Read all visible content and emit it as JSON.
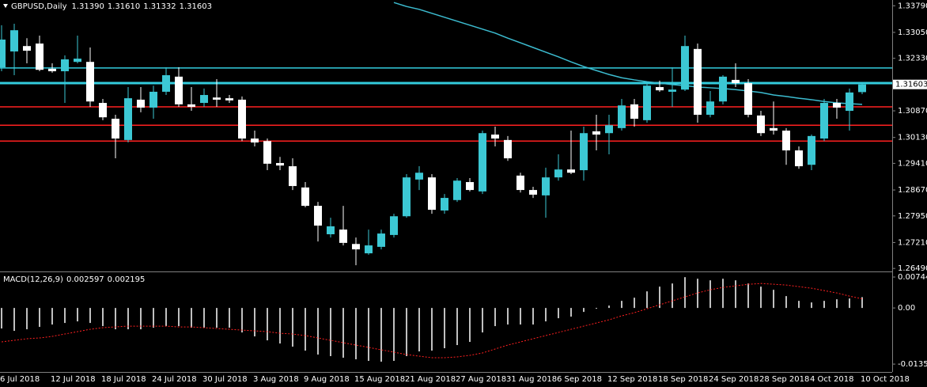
{
  "chart_data": [
    {
      "type": "candlestick",
      "title": "GBPUSD,Daily",
      "header_labels": [
        "1.31390",
        "1.31610",
        "1.31332",
        "1.31603"
      ],
      "categories": [
        "6 Jul 2018",
        null,
        null,
        null,
        "12 Jul 2018",
        null,
        null,
        null,
        "18 Jul 2018",
        null,
        null,
        null,
        "24 Jul 2018",
        null,
        null,
        null,
        "30 Jul 2018",
        null,
        null,
        null,
        "3 Aug 2018",
        null,
        null,
        null,
        "9 Aug 2018",
        null,
        null,
        null,
        "15 Aug 2018",
        null,
        null,
        null,
        "21 Aug 2018",
        null,
        null,
        null,
        "27 Aug 2018",
        null,
        null,
        null,
        "31 Aug 2018",
        null,
        null,
        null,
        "6 Sep 2018",
        null,
        null,
        null,
        "12 Sep 2018",
        null,
        null,
        null,
        "18 Sep 2018",
        null,
        null,
        null,
        "24 Sep 2018",
        null,
        null,
        null,
        "28 Sep 2018",
        null,
        null,
        null,
        "4 Oct 2018",
        null,
        null,
        null,
        "10 Oct 2018"
      ],
      "open": [
        1.3208,
        1.3252,
        1.3267,
        1.3274,
        1.3204,
        1.3197,
        1.3223,
        1.3223,
        1.3109,
        1.3065,
        1.3006,
        1.3118,
        1.3096,
        1.314,
        1.3182,
        1.3105,
        1.3109,
        1.3124,
        1.3122,
        1.3118,
        1.301,
        1.3003,
        1.2942,
        1.2933,
        1.2874,
        1.2823,
        1.2744,
        1.2757,
        1.2717,
        1.2691,
        1.2709,
        1.2742,
        1.2794,
        1.2896,
        1.2902,
        1.281,
        1.2839,
        1.2889,
        1.2863,
        1.3021,
        1.3006,
        1.2907,
        1.2867,
        1.2852,
        1.2902,
        1.2924,
        1.2922,
        1.303,
        1.3025,
        1.3039,
        1.3105,
        1.3061,
        1.3153,
        1.314,
        1.3146,
        1.3259,
        1.3076,
        1.3113,
        1.3173,
        1.3164,
        1.3074,
        1.3039,
        1.3032,
        1.2977,
        1.2937,
        1.301,
        1.3109,
        1.3087,
        1.3139
      ],
      "high": [
        1.3325,
        1.3329,
        1.3289,
        1.3296,
        1.3219,
        1.3241,
        1.3296,
        1.3263,
        1.312,
        1.3076,
        1.3153,
        1.3153,
        1.3157,
        1.3208,
        1.3208,
        1.3153,
        1.3149,
        1.3175,
        1.3131,
        1.3127,
        1.3032,
        1.301,
        1.2959,
        1.2955,
        1.2889,
        1.2834,
        1.279,
        1.2823,
        1.2735,
        1.2757,
        1.2757,
        1.2801,
        1.2911,
        1.2933,
        1.2911,
        1.2856,
        1.29,
        1.29,
        1.3032,
        1.3043,
        1.3017,
        1.2915,
        1.2876,
        1.2929,
        1.2966,
        1.3032,
        1.3043,
        1.3076,
        1.3076,
        1.312,
        1.312,
        1.3164,
        1.3171,
        1.3208,
        1.3296,
        1.3274,
        1.3142,
        1.3186,
        1.3219,
        1.3175,
        1.3087,
        1.3113,
        1.3039,
        1.2988,
        1.3021,
        1.312,
        1.312,
        1.3149,
        1.3161
      ],
      "low": [
        1.3197,
        1.3186,
        1.3219,
        1.3197,
        1.3193,
        1.3109,
        1.3219,
        1.3098,
        1.3061,
        1.2955,
        1.2999,
        1.3083,
        1.3065,
        1.3131,
        1.3098,
        1.3087,
        1.3098,
        1.3098,
        1.3109,
        1.3003,
        1.2988,
        1.2922,
        1.2922,
        1.2867,
        1.2819,
        1.2724,
        1.2735,
        1.2713,
        1.2658,
        1.2687,
        1.2702,
        1.2735,
        1.279,
        1.2867,
        1.2801,
        1.2801,
        1.2834,
        1.2863,
        1.2856,
        1.2988,
        1.2948,
        1.286,
        1.2845,
        1.279,
        1.2893,
        1.2911,
        1.2893,
        1.2977,
        1.2966,
        1.3032,
        1.3043,
        1.3054,
        1.314,
        1.3098,
        1.3142,
        1.3054,
        1.3069,
        1.3105,
        1.3153,
        1.3069,
        1.3017,
        1.3021,
        1.2937,
        1.2926,
        1.2922,
        1.3003,
        1.3065,
        1.3032,
        1.31332
      ],
      "close": [
        1.3285,
        1.3311,
        1.3254,
        1.3201,
        1.3197,
        1.323,
        1.3232,
        1.3113,
        1.3069,
        1.301,
        1.3122,
        1.3096,
        1.314,
        1.3186,
        1.3105,
        1.3098,
        1.3131,
        1.3118,
        1.3116,
        1.301,
        1.2999,
        1.294,
        1.2935,
        1.2878,
        1.2823,
        1.2768,
        1.2766,
        1.272,
        1.2702,
        1.2713,
        1.2746,
        1.2794,
        1.2902,
        1.2915,
        1.2812,
        1.2845,
        1.2893,
        1.2867,
        1.3025,
        1.301,
        1.2955,
        1.2867,
        1.2854,
        1.2902,
        1.2924,
        1.2915,
        1.3025,
        1.3021,
        1.3047,
        1.3102,
        1.3065,
        1.3157,
        1.3144,
        1.3146,
        1.3267,
        1.3076,
        1.3113,
        1.3182,
        1.3164,
        1.3076,
        1.3025,
        1.3032,
        1.2977,
        1.2933,
        1.3017,
        1.3109,
        1.3096,
        1.3138,
        1.31603
      ],
      "up_color": "#3cc8d4",
      "down_color": "#ffffff",
      "ma": {
        "color": "#3cbcd0",
        "values": [
          null,
          null,
          null,
          null,
          null,
          null,
          null,
          null,
          null,
          null,
          null,
          null,
          null,
          null,
          null,
          null,
          null,
          null,
          null,
          null,
          null,
          null,
          null,
          null,
          null,
          null,
          null,
          null,
          null,
          null,
          null,
          1.3388,
          1.3377,
          1.3369,
          1.3358,
          1.3347,
          1.3336,
          1.3325,
          1.3314,
          1.3303,
          1.3289,
          1.3276,
          1.3263,
          1.325,
          1.3237,
          1.3223,
          1.321,
          1.3199,
          1.3188,
          1.3179,
          1.3173,
          1.3168,
          1.3164,
          1.316,
          1.3157,
          1.3153,
          1.3151,
          1.3149,
          1.3146,
          1.3142,
          1.3138,
          1.3131,
          1.3127,
          1.3122,
          1.3118,
          1.3113,
          1.3109,
          1.3107,
          1.3105
        ]
      },
      "hlines": [
        {
          "value": 1.3206,
          "color": "#33ccdd"
        },
        {
          "value": 1.3164,
          "color": "#33ccdd"
        },
        {
          "value": 1.3098,
          "color": "#ff2020"
        },
        {
          "value": 1.3047,
          "color": "#ff2020"
        },
        {
          "value": 1.3003,
          "color": "#ff2020"
        }
      ],
      "current_price": {
        "value": 1.31603,
        "label": "1.31603"
      },
      "ylim": [
        1.2645,
        1.3395
      ],
      "yticks": [
        {
          "value": 1.3379,
          "label": "1.33790"
        },
        {
          "value": 1.3305,
          "label": "1.33050"
        },
        {
          "value": 1.3233,
          "label": "1.32330"
        },
        {
          "value": 1.3087,
          "label": "1.30870"
        },
        {
          "value": 1.3013,
          "label": "1.30130"
        },
        {
          "value": 1.2941,
          "label": "1.29410"
        },
        {
          "value": 1.2867,
          "label": "1.28670"
        },
        {
          "value": 1.2795,
          "label": "1.27950"
        },
        {
          "value": 1.2721,
          "label": "1.27210"
        },
        {
          "value": 1.2649,
          "label": "1.26490"
        }
      ],
      "grid": false
    },
    {
      "type": "macd",
      "title": "MACD(12,26,9)",
      "series": [
        {
          "color": "#c0c0c0",
          "values": [
            -0.00494,
            -0.00551,
            -0.00513,
            -0.00456,
            -0.00399,
            -0.00361,
            -0.00323,
            -0.00361,
            -0.00437,
            -0.00513,
            -0.00513,
            -0.00513,
            -0.00475,
            -0.00437,
            -0.00437,
            -0.00475,
            -0.00475,
            -0.00475,
            -0.00475,
            -0.00589,
            -0.00684,
            -0.00779,
            -0.00855,
            -0.00931,
            -0.01026,
            -0.01121,
            -0.01159,
            -0.01197,
            -0.01235,
            -0.01273,
            -0.01292,
            -0.01273,
            -0.01159,
            -0.01045,
            -0.01026,
            -0.00969,
            -0.00893,
            -0.00817,
            -0.00589,
            -0.00437,
            -0.00399,
            -0.00399,
            -0.00399,
            -0.00323,
            -0.00247,
            -0.00209,
            -0.00095,
            -0.00019,
            0.00057,
            0.00171,
            0.00247,
            0.00399,
            0.00513,
            0.00589,
            0.00741,
            0.00703,
            0.00665,
            0.00703,
            0.00665,
            0.00589,
            0.00513,
            0.00437,
            0.00285,
            0.00171,
            0.00133,
            0.00171,
            0.00209,
            0.00228,
            0.002597
          ]
        },
        {
          "color": "#ff2020",
          "values": [
            -0.00817,
            -0.00779,
            -0.00741,
            -0.00722,
            -0.00684,
            -0.00627,
            -0.0057,
            -0.00513,
            -0.00475,
            -0.00456,
            -0.00437,
            -0.00437,
            -0.00437,
            -0.00437,
            -0.00456,
            -0.00456,
            -0.00475,
            -0.00494,
            -0.00513,
            -0.00532,
            -0.00551,
            -0.0057,
            -0.00608,
            -0.00627,
            -0.00665,
            -0.00722,
            -0.00779,
            -0.00836,
            -0.00893,
            -0.0095,
            -0.01007,
            -0.01064,
            -0.01121,
            -0.01159,
            -0.01197,
            -0.01197,
            -0.01178,
            -0.0114,
            -0.01083,
            -0.00988,
            -0.00893,
            -0.00817,
            -0.00741,
            -0.00665,
            -0.00589,
            -0.00513,
            -0.00437,
            -0.00361,
            -0.00285,
            -0.0019,
            -0.00114,
            -0.00019,
            0.00076,
            0.00171,
            0.00266,
            0.00361,
            0.00437,
            0.00494,
            0.00532,
            0.0057,
            0.00589,
            0.0057,
            0.00551,
            0.00513,
            0.00475,
            0.00418,
            0.00361,
            0.00285,
            0.002195
          ]
        }
      ],
      "ylim": [
        -0.0154,
        0.0084
      ],
      "yticks": [
        0.007443,
        {
          "value": 0,
          "label": "0.00"
        },
        -0.01351
      ]
    }
  ]
}
